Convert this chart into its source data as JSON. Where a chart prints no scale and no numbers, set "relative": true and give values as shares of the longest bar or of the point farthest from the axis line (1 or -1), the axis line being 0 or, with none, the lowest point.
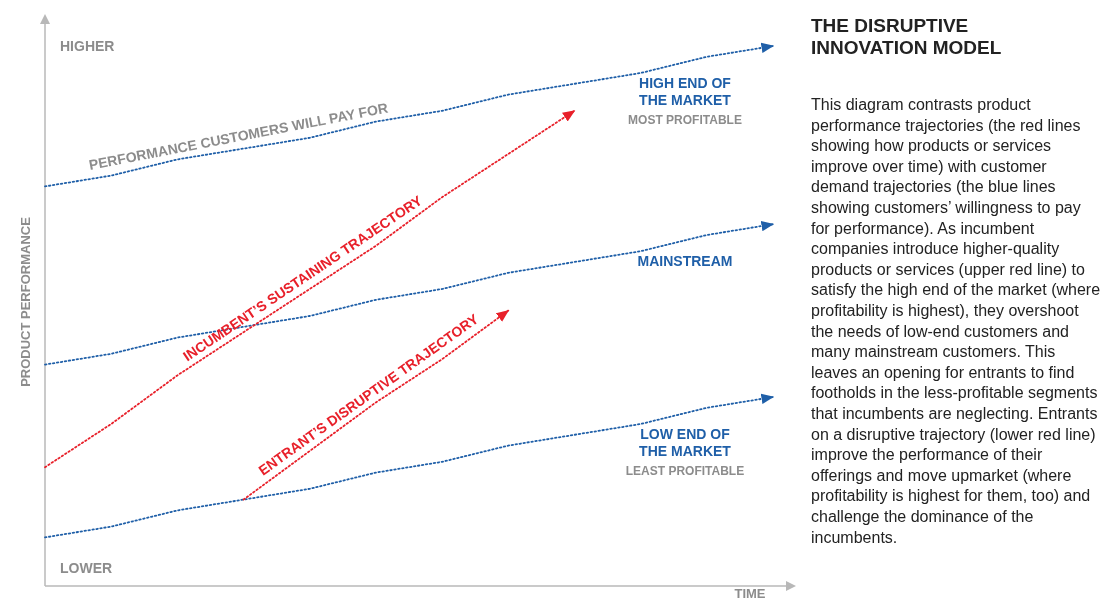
{
  "chart_data": {
    "type": "line",
    "relative": true,
    "line_style": "dotted",
    "marker": "none",
    "title": "THE DISRUPTIVE INNOVATION MODEL",
    "xlabel": "TIME",
    "ylabel": "PRODUCT PERFORMANCE",
    "categories": [
      null,
      null,
      null,
      null,
      null,
      null,
      null,
      null,
      null,
      null,
      null,
      null
    ],
    "series": [
      {
        "name": "HIGH END OF THE MARKET",
        "color": "#1f5fa8",
        "values": [
          0.74,
          0.76,
          0.79,
          0.81,
          0.83,
          0.86,
          0.88,
          0.91,
          0.93,
          0.95,
          0.98,
          1.0
        ]
      },
      {
        "name": "MAINSTREAM",
        "color": "#1f5fa8",
        "values": [
          0.41,
          0.43,
          0.46,
          0.48,
          0.5,
          0.53,
          0.55,
          0.58,
          0.6,
          0.62,
          0.65,
          0.67
        ]
      },
      {
        "name": "LOW END OF THE MARKET",
        "color": "#1f5fa8",
        "values": [
          0.09,
          0.11,
          0.14,
          0.16,
          0.18,
          0.21,
          0.23,
          0.26,
          0.28,
          0.3,
          0.33,
          0.35
        ]
      },
      {
        "name": "INCUMBENT’S SUSTAINING TRAJECTORY",
        "color": "#e8202a",
        "values": [
          0.22,
          0.3,
          0.39,
          0.47,
          0.55,
          0.63,
          0.72,
          0.8,
          0.88,
          null,
          null,
          null
        ]
      },
      {
        "name": "ENTRANT’S DISRUPTIVE TRAJECTORY",
        "color": "#e8202a",
        "values": [
          null,
          null,
          null,
          0.16,
          0.25,
          0.34,
          0.42,
          0.51,
          null,
          null,
          null,
          null
        ]
      }
    ],
    "annotations": [
      "HIGHER",
      "LOWER",
      "PERFORMANCE CUSTOMERS WILL PAY FOR",
      "MOST PROFITABLE",
      "LEAST PROFITABLE",
      "This diagram contrasts product performance trajectories (the red lines showing how products or services improve over time) with customer demand trajectories (the blue lines showing customers’ willingness to pay for performance). As incumbent companies introduce higher-quality products or services (upper red line) to satisfy the high end of the market (where profitability is highest), they overshoot the needs of low-end customers and many mainstream customers. This leaves an opening for entrants to find footholds in the less-profitable segments that incumbents are neglecting. Entrants on a disruptive trajectory (lower red line) improve the performance of their offerings and move upmarket (where profitability is highest for them, too) and challenge the dominance of the incumbents."
    ]
  }
}
